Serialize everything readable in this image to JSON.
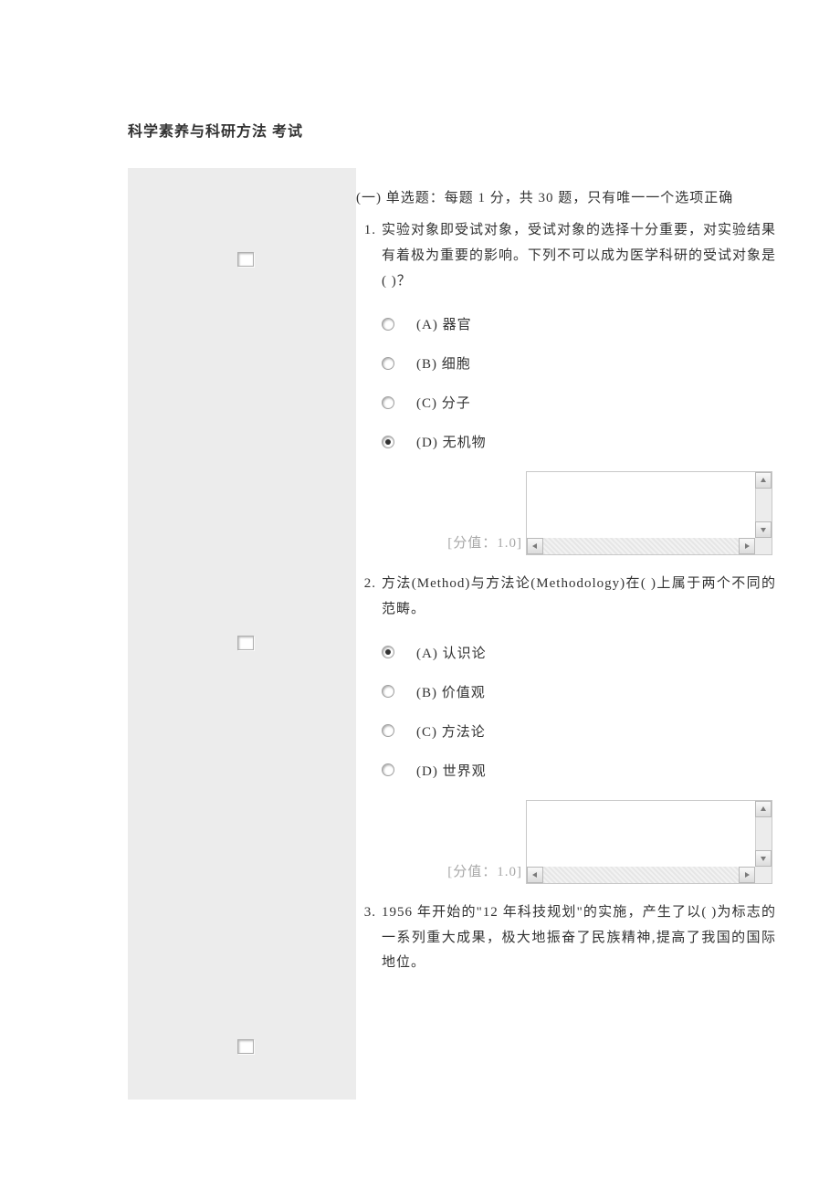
{
  "title": "科学素养与科研方法 考试",
  "section_header": "(一) 单选题：每题 1 分，共 30 题，只有唯一一个选项正确",
  "score_label": "[分值：1.0]",
  "sidebar_mark_positions": [
    92,
    512,
    954
  ],
  "questions": [
    {
      "num": "1.",
      "text": "实验对象即受试对象，受试对象的选择十分重要，对实验结果有着极为重要的影响。下列不可以成为医学科研的受试对象是( )？",
      "options": [
        {
          "label": "(A) 器官",
          "selected": false
        },
        {
          "label": "(B) 细胞",
          "selected": false
        },
        {
          "label": "(C) 分子",
          "selected": false
        },
        {
          "label": "(D) 无机物",
          "selected": true
        }
      ],
      "show_score": true
    },
    {
      "num": "2.",
      "text": "方法(Method)与方法论(Methodology)在( )上属于两个不同的范畴。",
      "options": [
        {
          "label": "(A) 认识论",
          "selected": true
        },
        {
          "label": "(B) 价值观",
          "selected": false
        },
        {
          "label": "(C) 方法论",
          "selected": false
        },
        {
          "label": "(D) 世界观",
          "selected": false
        }
      ],
      "show_score": true
    },
    {
      "num": "3.",
      "text": "1956 年开始的\"12 年科技规划\"的实施，产生了以( )为标志的一系列重大成果，极大地振奋了民族精神,提高了我国的国际地位。",
      "options": [],
      "show_score": false
    }
  ]
}
